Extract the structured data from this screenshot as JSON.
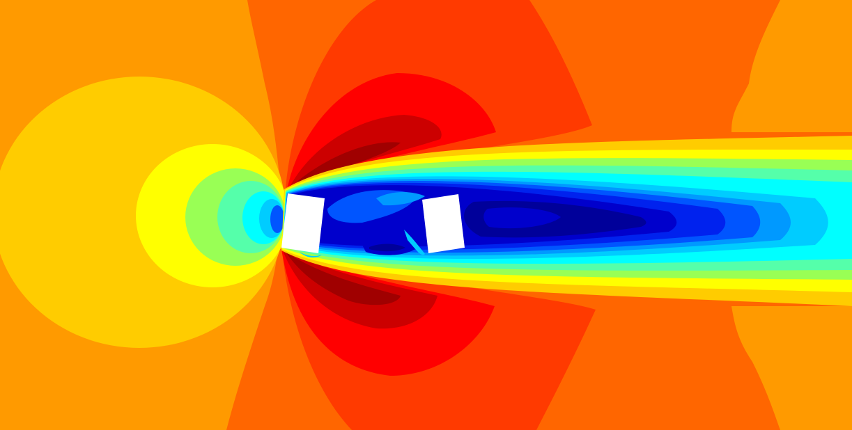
{
  "figure": {
    "kind": "cfd-velocity-contour",
    "description_visible_text": "",
    "colormap": "jet",
    "colors": {
      "background": "#ff9a00",
      "dark_red": "#a00000",
      "red_dark": "#cc0000",
      "red": "#ff0000",
      "red_orange": "#ff3a00",
      "orange_dark": "#ff6600",
      "orange": "#ff9a00",
      "yellow_orange": "#ffcc00",
      "yellow": "#ffff00",
      "lime": "#99ff55",
      "green": "#55ffaa",
      "cyan": "#00ffff",
      "sky": "#00ccff",
      "blue_light": "#0099ff",
      "blue": "#0055ff",
      "blue_mid": "#0022ee",
      "blue_deep": "#0000cc",
      "navy": "#00009a",
      "obstacle": "#ffffff"
    },
    "obstacles": [
      "bluff-body-upstream",
      "bluff-body-downstream"
    ]
  }
}
